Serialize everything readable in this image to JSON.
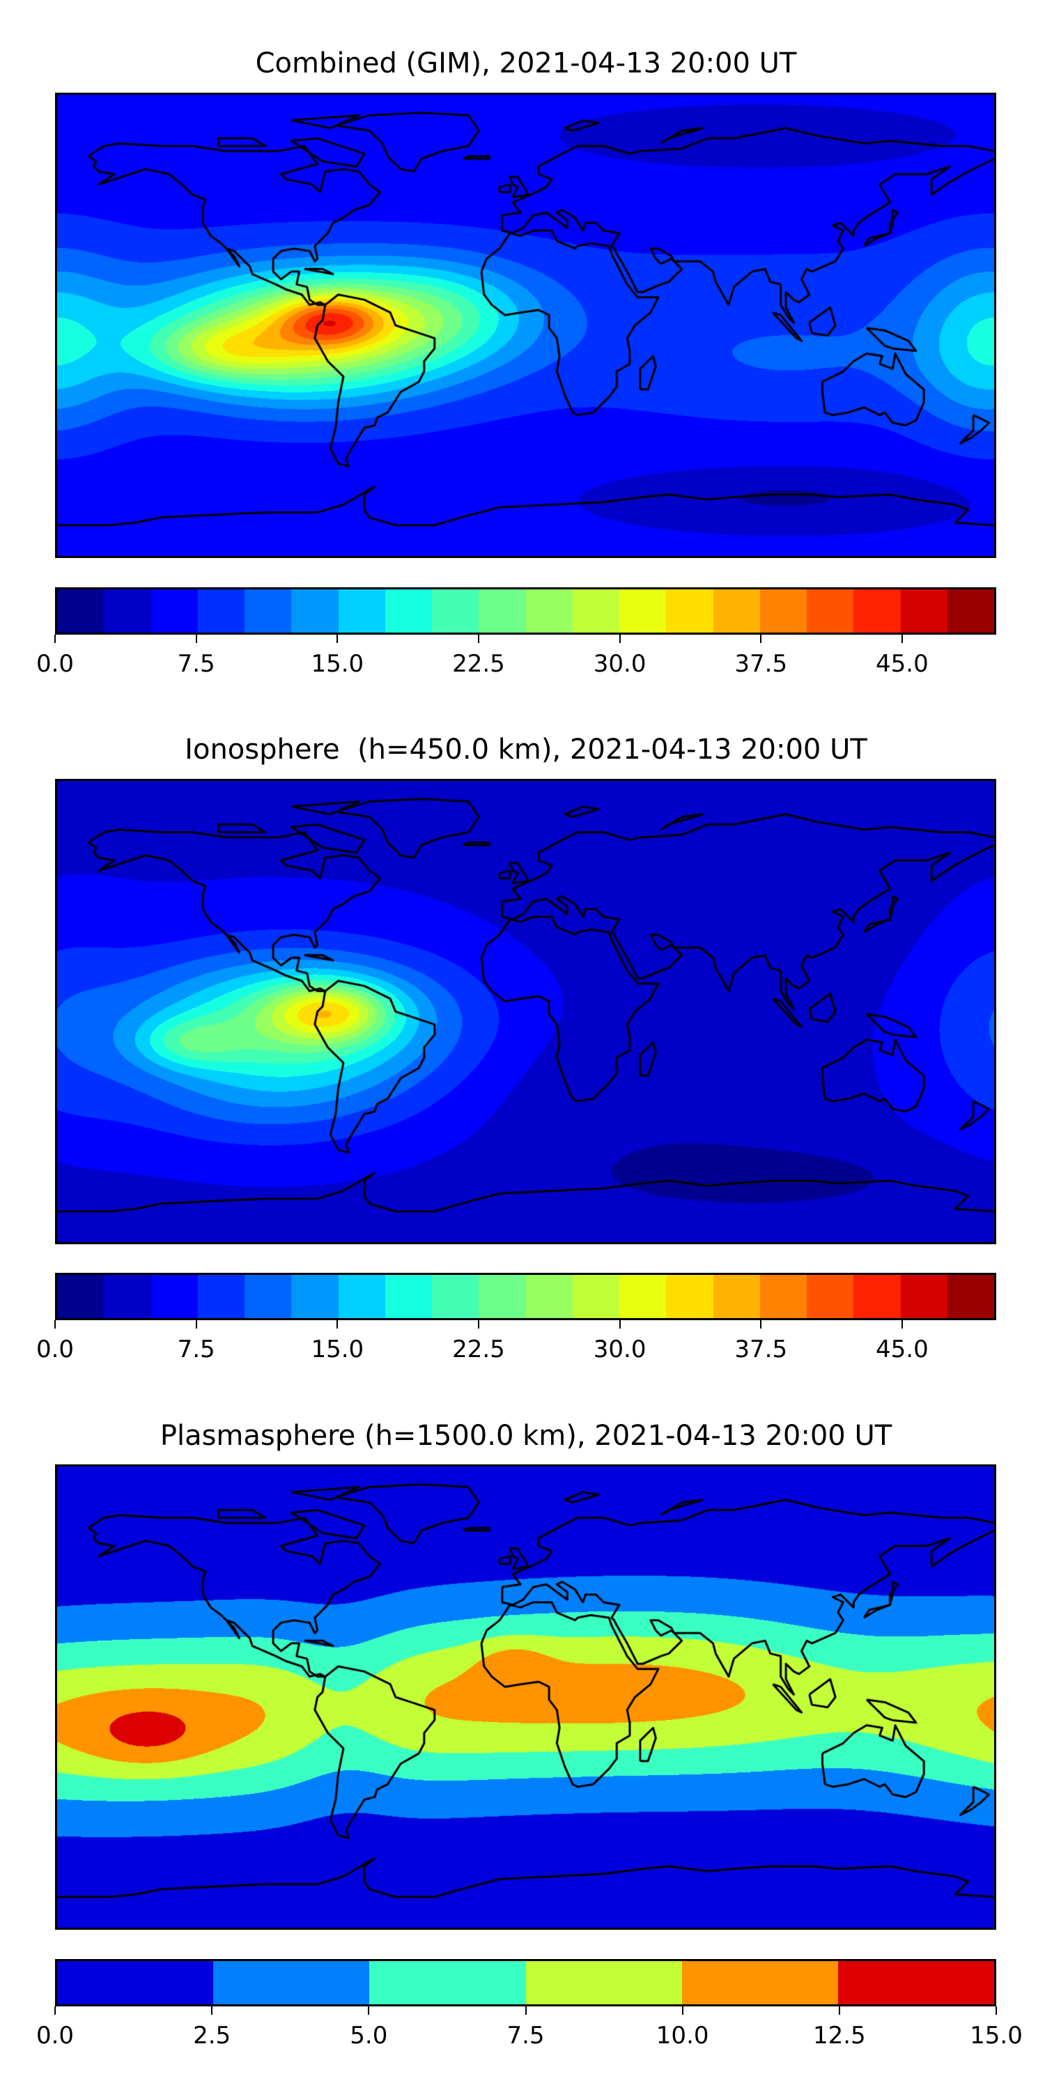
{
  "panels": [
    {
      "title": "Combined (GIM), 2021-04-13 20:00 UT",
      "colorbar": {
        "min": 0,
        "max": 50,
        "step": 2.5,
        "colors": [
          "#000090",
          "#0000C8",
          "#0000FF",
          "#0030FF",
          "#0064FF",
          "#0098FF",
          "#00D0FF",
          "#16FFE1",
          "#43FFB4",
          "#6DFF8A",
          "#97FF60",
          "#C1FF36",
          "#E7FF0F",
          "#FFDE00",
          "#FFB200",
          "#FF8200",
          "#FF5300",
          "#FF2200",
          "#D40000",
          "#990000"
        ],
        "ticks": [
          0,
          7.5,
          15,
          22.5,
          30,
          37.5,
          45
        ],
        "tick_labels": [
          "0.0",
          "7.5",
          "15.0",
          "22.5",
          "30.0",
          "37.5",
          "45.0"
        ]
      }
    },
    {
      "title": "Ionosphere  (h=450.0 km), 2021-04-13 20:00 UT",
      "colorbar": {
        "min": 0,
        "max": 50,
        "step": 2.5,
        "colors": [
          "#000090",
          "#0000C8",
          "#0000FF",
          "#0030FF",
          "#0064FF",
          "#0098FF",
          "#00D0FF",
          "#16FFE1",
          "#43FFB4",
          "#6DFF8A",
          "#97FF60",
          "#C1FF36",
          "#E7FF0F",
          "#FFDE00",
          "#FFB200",
          "#FF8200",
          "#FF5300",
          "#FF2200",
          "#D40000",
          "#990000"
        ],
        "ticks": [
          0,
          7.5,
          15,
          22.5,
          30,
          37.5,
          45
        ],
        "tick_labels": [
          "0.0",
          "7.5",
          "15.0",
          "22.5",
          "30.0",
          "37.5",
          "45.0"
        ]
      }
    },
    {
      "title": "Plasmasphere (h=1500.0 km), 2021-04-13 20:00 UT",
      "colorbar": {
        "min": 0,
        "max": 15,
        "step": 2.5,
        "colors": [
          "#0000DC",
          "#0080FF",
          "#3AFFC2",
          "#C2FF36",
          "#FF9400",
          "#DD0000"
        ],
        "ticks": [
          0,
          2.5,
          5,
          7.5,
          10,
          12.5,
          15
        ],
        "tick_labels": [
          "0.0",
          "2.5",
          "5.0",
          "7.5",
          "10.0",
          "12.5",
          "15.0"
        ]
      }
    }
  ],
  "chart_data": [
    {
      "type": "heatmap",
      "title": "Combined (GIM), 2021-04-13 20:00 UT",
      "xlim": [
        -180,
        180
      ],
      "ylim": [
        -90,
        90
      ],
      "colorbar_range": [
        0,
        50
      ],
      "levels_step": 2.5,
      "features": [
        {
          "description": "maximum",
          "lon": -78,
          "lat": 0,
          "value": 42.5
        },
        {
          "description": "secondary maximum",
          "lon": -115,
          "lat": -10,
          "value": 37.5
        },
        {
          "description": "minimum",
          "lon": 100,
          "lat": -68,
          "value": 2
        }
      ]
    },
    {
      "type": "heatmap",
      "title": "Ionosphere  (h=450.0 km), 2021-04-13 20:00 UT",
      "xlim": [
        -180,
        180
      ],
      "ylim": [
        -90,
        90
      ],
      "colorbar_range": [
        0,
        50
      ],
      "levels_step": 2.5,
      "features": [
        {
          "description": "maximum",
          "lon": -75,
          "lat": 0,
          "value": 35
        },
        {
          "description": "secondary maximum",
          "lon": -130,
          "lat": -10,
          "value": 30
        },
        {
          "description": "minimum region (Eurasia/Africa/Indian Ocean)",
          "lon": 80,
          "lat": 10,
          "value": 2
        }
      ]
    },
    {
      "type": "heatmap",
      "title": "Plasmasphere (h=1500.0 km), 2021-04-13 20:00 UT",
      "xlim": [
        -180,
        180
      ],
      "ylim": [
        -90,
        90
      ],
      "colorbar_range": [
        0,
        15
      ],
      "levels_step": 2.5,
      "features": [
        {
          "description": "maximum (Pacific)",
          "lon": -140,
          "lat": -12,
          "value": 10.5
        },
        {
          "description": "maximum (West Africa)",
          "lon": -5,
          "lat": 12,
          "value": 10.5
        },
        {
          "description": "polar minimum",
          "lon": 0,
          "lat": -70,
          "value": 1
        }
      ]
    }
  ]
}
